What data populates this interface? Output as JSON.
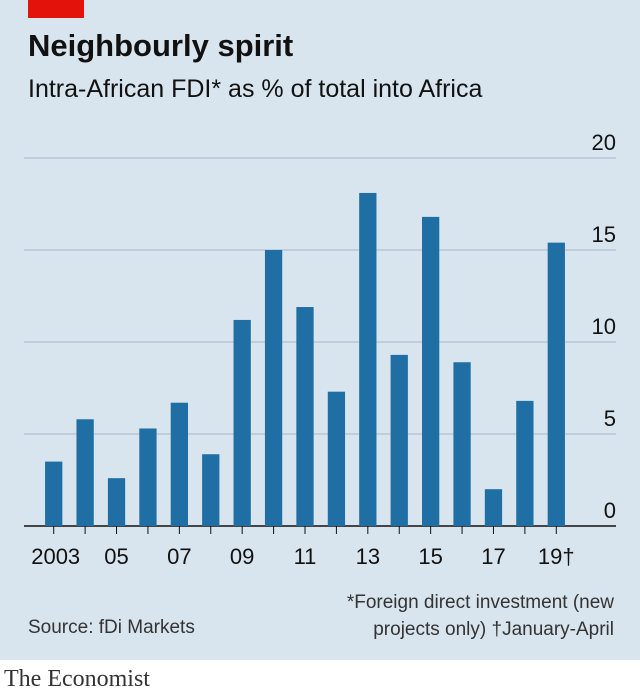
{
  "header": {
    "title": "Neighbourly spirit",
    "subtitle": "Intra-African FDI* as % of total into Africa"
  },
  "footer": {
    "source": "Source: fDi Markets",
    "footnote_line1": "*Foreign direct investment (new",
    "footnote_line2": "projects only)  †January-April",
    "brand": "The Economist"
  },
  "colors": {
    "background": "#d8e5ee",
    "bar": "#1f6ea4",
    "brand_red": "#e3120b",
    "grid": "#a9b8c4"
  },
  "chart_data": {
    "type": "bar",
    "title": "Neighbourly spirit",
    "subtitle": "Intra-African FDI* as % of total into Africa",
    "xlabel": "",
    "ylabel": "",
    "ylim": [
      0,
      20
    ],
    "yticks": [
      0,
      5,
      10,
      15,
      20
    ],
    "grid": true,
    "categories": [
      "2003",
      "2004",
      "2005",
      "2006",
      "2007",
      "2008",
      "2009",
      "2010",
      "2011",
      "2012",
      "2013",
      "2014",
      "2015",
      "2016",
      "2017",
      "2018",
      "2019†"
    ],
    "x_tick_labels": [
      "2003",
      "",
      "05",
      "",
      "07",
      "",
      "09",
      "",
      "11",
      "",
      "13",
      "",
      "15",
      "",
      "17",
      "",
      "19†"
    ],
    "values": [
      3.5,
      5.8,
      2.6,
      5.3,
      6.7,
      3.9,
      11.2,
      15.0,
      11.9,
      7.3,
      18.1,
      9.3,
      16.8,
      8.9,
      2.0,
      6.8,
      15.4
    ]
  }
}
